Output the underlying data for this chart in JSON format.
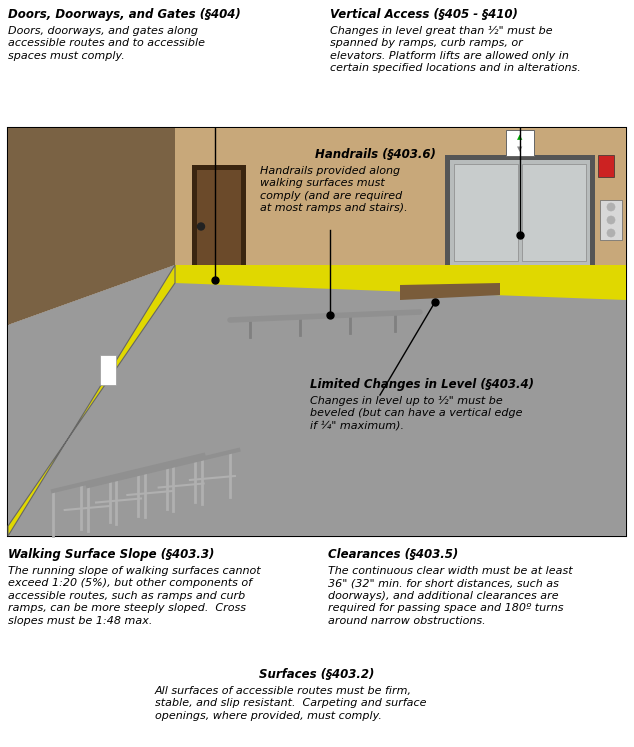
{
  "fig_width": 6.34,
  "fig_height": 7.47,
  "bg_color": "#ffffff",
  "annotations": {
    "doors_title": "Doors, Doorways, and Gates (§404)",
    "doors_body": "Doors, doorways, and gates along\naccessible routes and to accessible\nspaces must comply.",
    "vertical_title": "Vertical Access (§405 - §410)",
    "vertical_body": "Changes in level great than ½\" must be\nspanned by ramps, curb ramps, or\nelevators. Platform lifts are allowed only in\ncertain specified locations and in alterations.",
    "handrails_title": "Handrails (§403.6)",
    "handrails_body": "Handrails provided along\nwalking surfaces must\ncomply (and are required\nat most ramps and stairs).",
    "limited_title": "Limited Changes in Level (§403.4)",
    "limited_body": "Changes in level up to ½\" must be\nbeveled (but can have a vertical edge\nif ¼\" maximum).",
    "slope_title": "Walking Surface Slope (§403.3)",
    "slope_body": "The running slope of walking surfaces cannot\nexceed 1:20 (5%), but other components of\naccessible routes, such as ramps and curb\nramps, can be more steeply sloped.  Cross\nslopes must be 1:48 max.",
    "clearances_title": "Clearances (§403.5)",
    "clearances_body": "The continuous clear width must be at least\n36\" (32\" min. for short distances, such as\ndoorways), and additional clearances are\nrequired for passing space and 180º turns\naround narrow obstructions.",
    "surfaces_title": "Surfaces (§403.2)",
    "surfaces_body": "All surfaces of accessible routes must be firm,\nstable, and slip resistant.  Carpeting and surface\nopenings, where provided, must comply."
  },
  "title_fontsize": 8.5,
  "body_fontsize": 8.0,
  "wall_back": "#C8A87A",
  "wall_left": "#7A6244",
  "wall_left_light": "#9B7D5A",
  "floor_gray": "#9A9A9A",
  "floor_dark": "#7A7A7A",
  "ramp_yellow": "#E8DC00",
  "door_brown": "#5C3D1E",
  "door_frame": "#3A2510",
  "elev_silver": "#B0B4B8",
  "elev_panel": "#C8CCCC",
  "handrail_gray": "#909090",
  "rail_guard": "#A0A0A0"
}
